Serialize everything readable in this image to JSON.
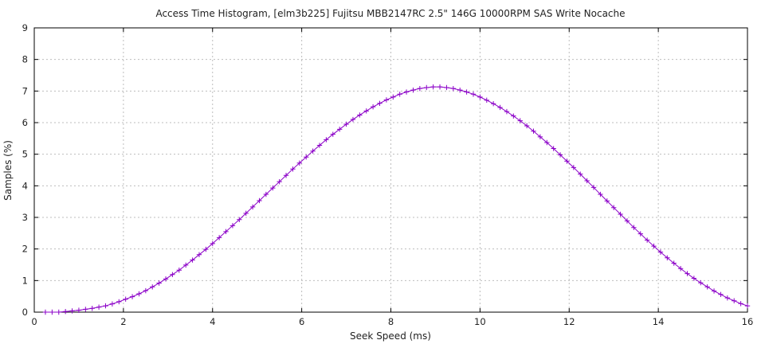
{
  "chart_data": {
    "type": "line",
    "title": "Access Time Histogram, [elm3b225] Fujitsu MBB2147RC 2.5\" 146G 10000RPM SAS Write Nocache",
    "xlabel": "Seek Speed (ms)",
    "ylabel": "Samples (%)",
    "xlim": [
      0,
      16
    ],
    "ylim": [
      0,
      9
    ],
    "x_ticks": [
      0,
      2,
      4,
      6,
      8,
      10,
      12,
      14,
      16
    ],
    "y_ticks": [
      0,
      1,
      2,
      3,
      4,
      5,
      6,
      7,
      8,
      9
    ],
    "x_tick_labels": [
      "0",
      "2",
      "4",
      "6",
      "8",
      "10",
      "12",
      "14",
      "16"
    ],
    "y_tick_labels": [
      "0",
      "1",
      "2",
      "3",
      "4",
      "5",
      "6",
      "7",
      "8",
      "9"
    ],
    "grid": true,
    "legend": "none",
    "series": [
      {
        "color": "#8b00c8",
        "marker": "plus",
        "points": [
          {
            "x": 0.25,
            "y": 0.0
          },
          {
            "x": 0.4,
            "y": 0.0
          },
          {
            "x": 0.55,
            "y": 0.0
          },
          {
            "x": 0.7,
            "y": 0.02
          },
          {
            "x": 0.85,
            "y": 0.04
          },
          {
            "x": 1.0,
            "y": 0.06
          },
          {
            "x": 1.15,
            "y": 0.09
          },
          {
            "x": 1.3,
            "y": 0.12
          },
          {
            "x": 1.45,
            "y": 0.16
          },
          {
            "x": 1.6,
            "y": 0.2
          },
          {
            "x": 1.75,
            "y": 0.26
          },
          {
            "x": 1.9,
            "y": 0.33
          },
          {
            "x": 2.05,
            "y": 0.41
          },
          {
            "x": 2.2,
            "y": 0.49
          },
          {
            "x": 2.35,
            "y": 0.58
          },
          {
            "x": 2.5,
            "y": 0.68
          },
          {
            "x": 2.65,
            "y": 0.8
          },
          {
            "x": 2.8,
            "y": 0.92
          },
          {
            "x": 2.95,
            "y": 1.05
          },
          {
            "x": 3.1,
            "y": 1.19
          },
          {
            "x": 3.25,
            "y": 1.33
          },
          {
            "x": 3.4,
            "y": 1.49
          },
          {
            "x": 3.55,
            "y": 1.65
          },
          {
            "x": 3.7,
            "y": 1.82
          },
          {
            "x": 3.85,
            "y": 1.99
          },
          {
            "x": 4.0,
            "y": 2.17
          },
          {
            "x": 4.15,
            "y": 2.36
          },
          {
            "x": 4.3,
            "y": 2.55
          },
          {
            "x": 4.45,
            "y": 2.74
          },
          {
            "x": 4.6,
            "y": 2.93
          },
          {
            "x": 4.75,
            "y": 3.13
          },
          {
            "x": 4.9,
            "y": 3.33
          },
          {
            "x": 5.05,
            "y": 3.53
          },
          {
            "x": 5.2,
            "y": 3.73
          },
          {
            "x": 5.35,
            "y": 3.93
          },
          {
            "x": 5.5,
            "y": 4.13
          },
          {
            "x": 5.65,
            "y": 4.33
          },
          {
            "x": 5.8,
            "y": 4.53
          },
          {
            "x": 5.95,
            "y": 4.72
          },
          {
            "x": 6.1,
            "y": 4.91
          },
          {
            "x": 6.25,
            "y": 5.1
          },
          {
            "x": 6.4,
            "y": 5.28
          },
          {
            "x": 6.55,
            "y": 5.46
          },
          {
            "x": 6.7,
            "y": 5.63
          },
          {
            "x": 6.85,
            "y": 5.79
          },
          {
            "x": 7.0,
            "y": 5.95
          },
          {
            "x": 7.15,
            "y": 6.1
          },
          {
            "x": 7.3,
            "y": 6.24
          },
          {
            "x": 7.45,
            "y": 6.37
          },
          {
            "x": 7.6,
            "y": 6.5
          },
          {
            "x": 7.75,
            "y": 6.61
          },
          {
            "x": 7.9,
            "y": 6.72
          },
          {
            "x": 8.05,
            "y": 6.81
          },
          {
            "x": 8.2,
            "y": 6.9
          },
          {
            "x": 8.35,
            "y": 6.97
          },
          {
            "x": 8.5,
            "y": 7.03
          },
          {
            "x": 8.65,
            "y": 7.08
          },
          {
            "x": 8.8,
            "y": 7.11
          },
          {
            "x": 8.95,
            "y": 7.13
          },
          {
            "x": 9.1,
            "y": 7.13
          },
          {
            "x": 9.25,
            "y": 7.11
          },
          {
            "x": 9.4,
            "y": 7.08
          },
          {
            "x": 9.55,
            "y": 7.03
          },
          {
            "x": 9.7,
            "y": 6.97
          },
          {
            "x": 9.85,
            "y": 6.9
          },
          {
            "x": 10.0,
            "y": 6.81
          },
          {
            "x": 10.15,
            "y": 6.71
          },
          {
            "x": 10.3,
            "y": 6.6
          },
          {
            "x": 10.45,
            "y": 6.48
          },
          {
            "x": 10.6,
            "y": 6.35
          },
          {
            "x": 10.75,
            "y": 6.21
          },
          {
            "x": 10.9,
            "y": 6.06
          },
          {
            "x": 11.05,
            "y": 5.9
          },
          {
            "x": 11.2,
            "y": 5.73
          },
          {
            "x": 11.35,
            "y": 5.55
          },
          {
            "x": 11.5,
            "y": 5.37
          },
          {
            "x": 11.65,
            "y": 5.18
          },
          {
            "x": 11.8,
            "y": 4.98
          },
          {
            "x": 11.95,
            "y": 4.78
          },
          {
            "x": 12.1,
            "y": 4.58
          },
          {
            "x": 12.25,
            "y": 4.37
          },
          {
            "x": 12.4,
            "y": 4.16
          },
          {
            "x": 12.55,
            "y": 3.95
          },
          {
            "x": 12.7,
            "y": 3.73
          },
          {
            "x": 12.85,
            "y": 3.52
          },
          {
            "x": 13.0,
            "y": 3.31
          },
          {
            "x": 13.15,
            "y": 3.1
          },
          {
            "x": 13.3,
            "y": 2.89
          },
          {
            "x": 13.45,
            "y": 2.68
          },
          {
            "x": 13.6,
            "y": 2.48
          },
          {
            "x": 13.75,
            "y": 2.28
          },
          {
            "x": 13.9,
            "y": 2.09
          },
          {
            "x": 14.05,
            "y": 1.9
          },
          {
            "x": 14.2,
            "y": 1.72
          },
          {
            "x": 14.35,
            "y": 1.55
          },
          {
            "x": 14.5,
            "y": 1.38
          },
          {
            "x": 14.65,
            "y": 1.22
          },
          {
            "x": 14.8,
            "y": 1.07
          },
          {
            "x": 14.95,
            "y": 0.93
          },
          {
            "x": 15.1,
            "y": 0.8
          },
          {
            "x": 15.25,
            "y": 0.67
          },
          {
            "x": 15.4,
            "y": 0.56
          },
          {
            "x": 15.55,
            "y": 0.45
          },
          {
            "x": 15.7,
            "y": 0.36
          },
          {
            "x": 15.85,
            "y": 0.27
          },
          {
            "x": 16.0,
            "y": 0.2
          }
        ]
      }
    ]
  }
}
